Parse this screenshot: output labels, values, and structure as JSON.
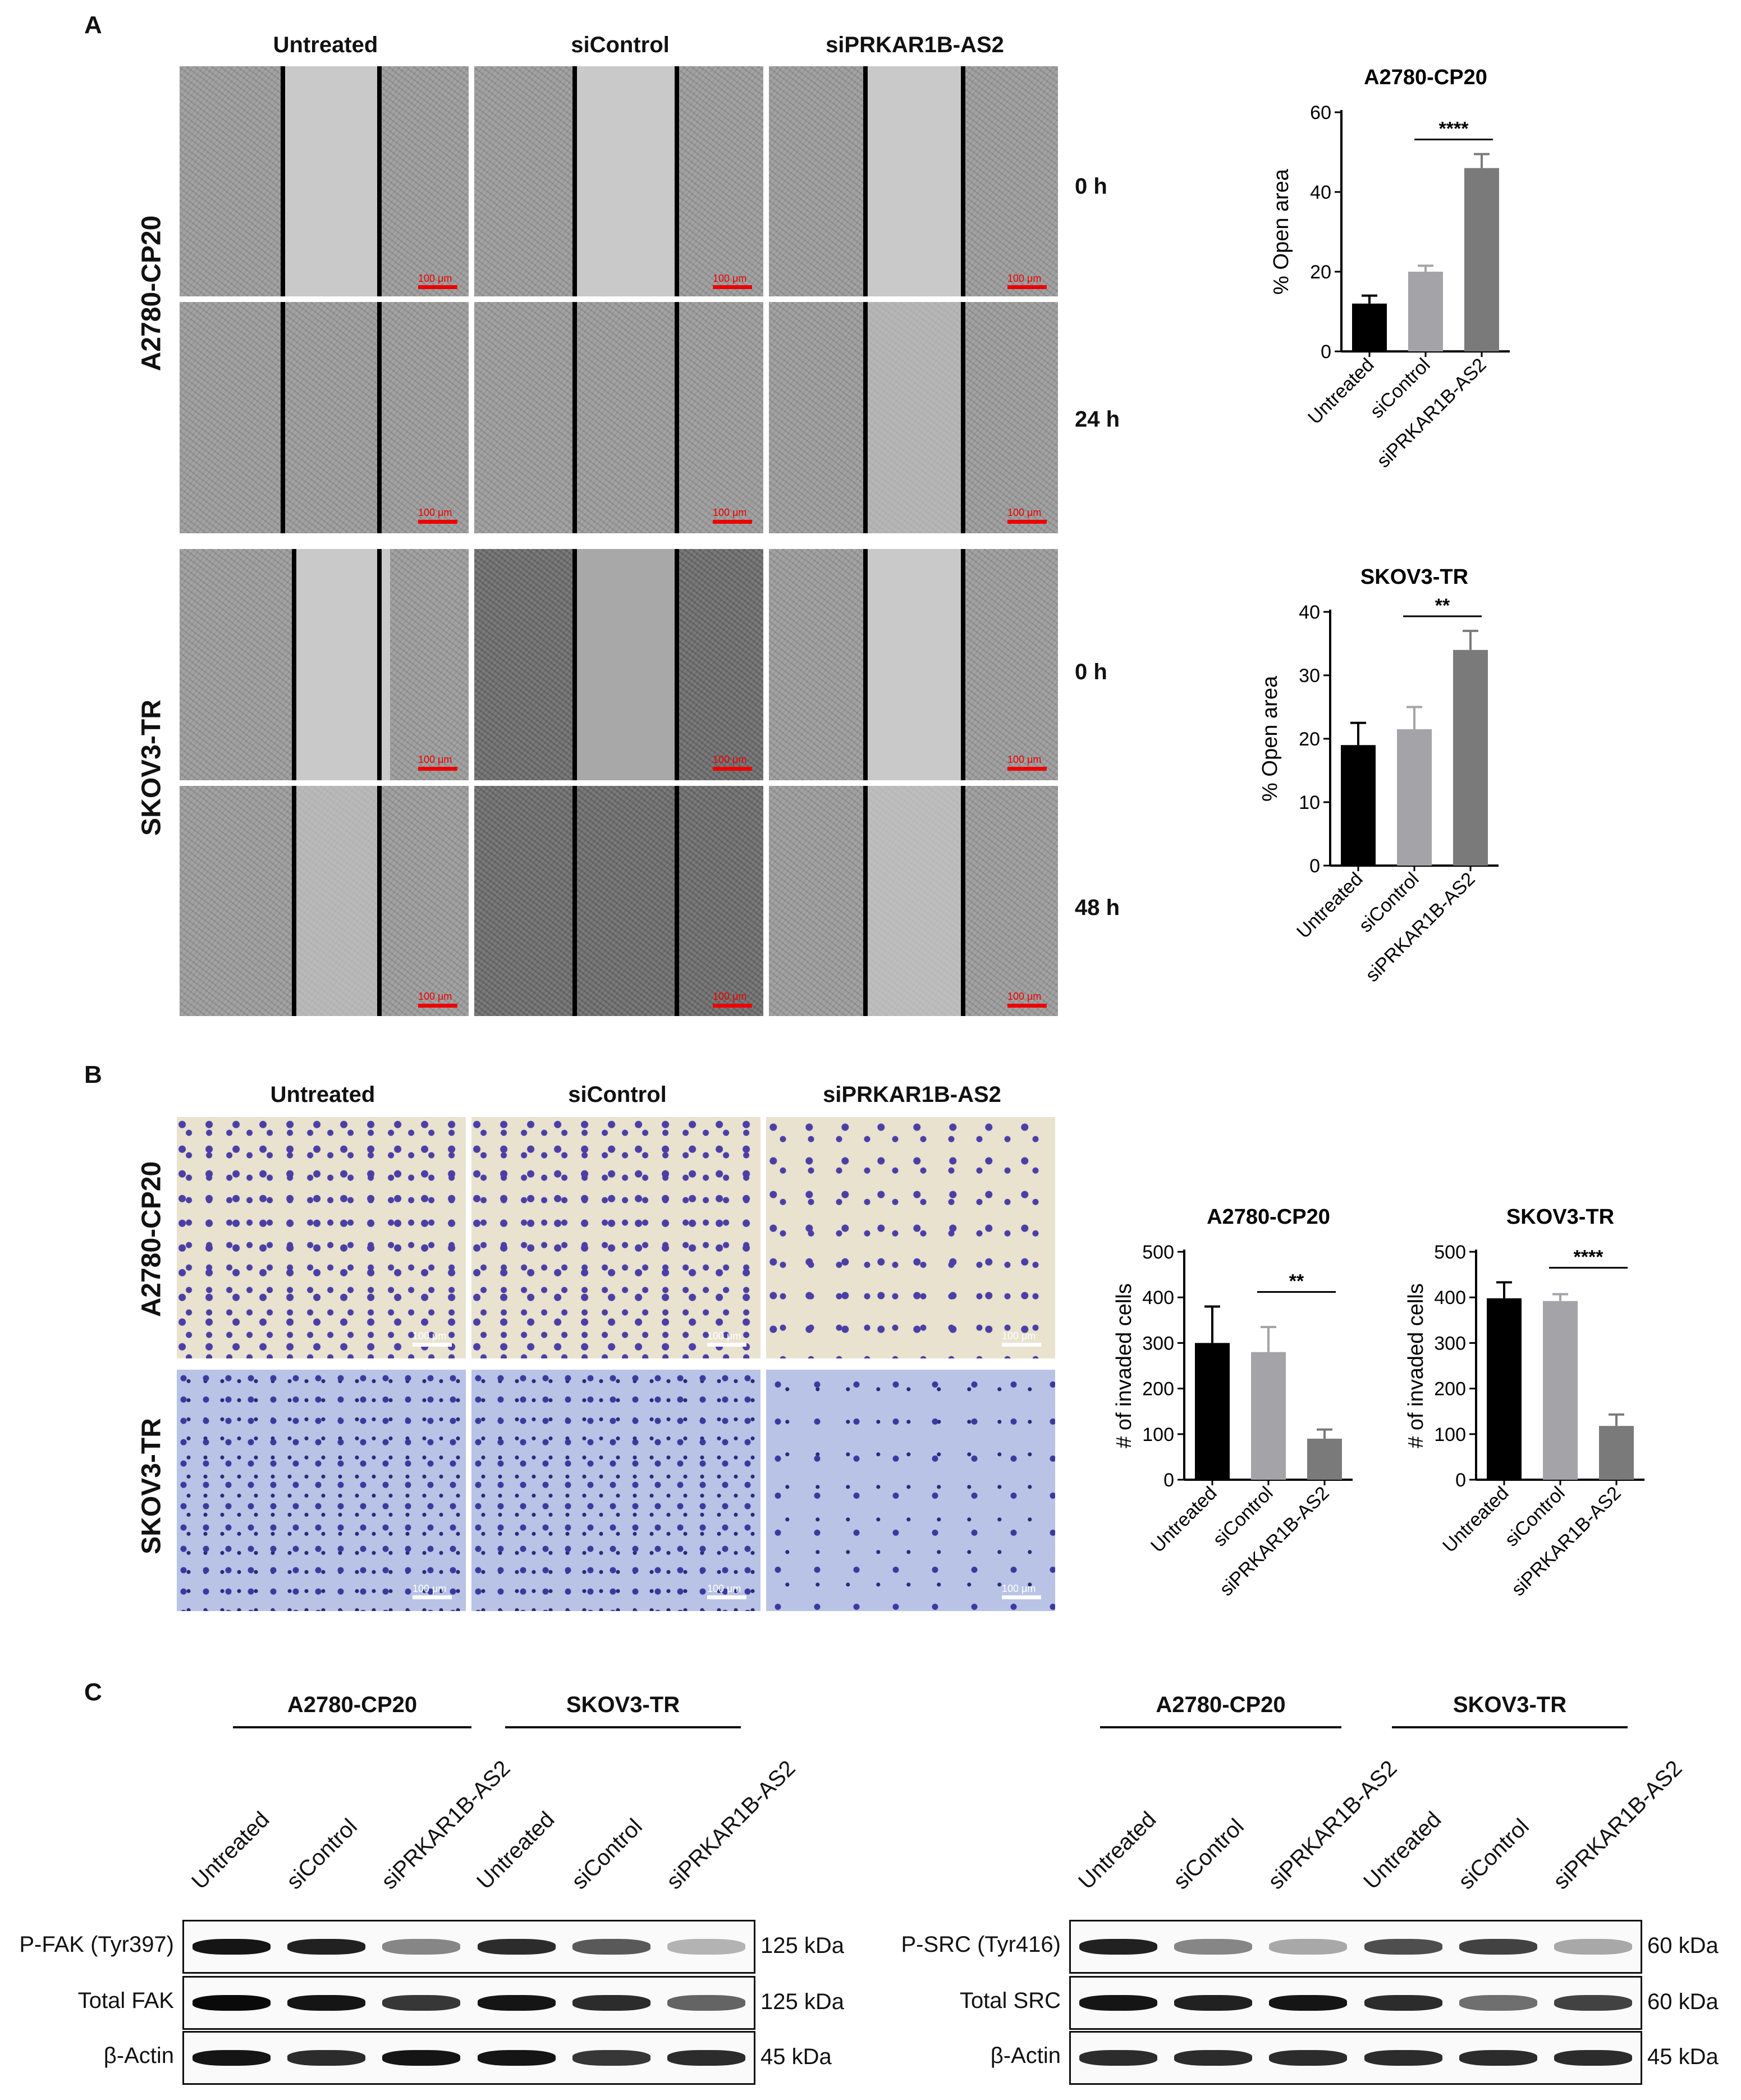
{
  "panels": {
    "a": "A",
    "b": "B",
    "c": "C"
  },
  "treatments": [
    "Untreated",
    "siControl",
    "siPRKAR1B-AS2"
  ],
  "cell_lines": [
    "A2780-CP20",
    "SKOV3-TR"
  ],
  "panel_a": {
    "times_a2780": [
      "0 h",
      "24 h"
    ],
    "times_skov3": [
      "0 h",
      "48 h"
    ],
    "scale": "100 μm"
  },
  "panel_b": {
    "scale": "100 μm"
  },
  "panel_c": {
    "left": {
      "groups": [
        "A2780-CP20",
        "SKOV3-TR"
      ],
      "lanes": [
        "Untreated",
        "siControl",
        "siPRKAR1B-AS2",
        "Untreated",
        "siControl",
        "siPRKAR1B-AS2"
      ],
      "rows": [
        {
          "label": "P-FAK (Tyr397)",
          "kda": "125 kDa",
          "intensity": [
            0.95,
            0.9,
            0.45,
            0.85,
            0.65,
            0.25
          ]
        },
        {
          "label": "Total FAK",
          "kda": "125 kDa",
          "intensity": [
            1.0,
            0.95,
            0.8,
            0.95,
            0.85,
            0.6
          ]
        },
        {
          "label": "β-Actin",
          "kda": "45 kDa",
          "intensity": [
            0.95,
            0.85,
            0.95,
            0.95,
            0.8,
            0.85
          ]
        }
      ]
    },
    "right": {
      "groups": [
        "A2780-CP20",
        "SKOV3-TR"
      ],
      "lanes": [
        "Untreated",
        "siControl",
        "siPRKAR1B-AS2",
        "Untreated",
        "siControl",
        "siPRKAR1B-AS2"
      ],
      "rows": [
        {
          "label": "P-SRC (Tyr416)",
          "kda": "60 kDa",
          "intensity": [
            0.9,
            0.45,
            0.3,
            0.7,
            0.75,
            0.3
          ]
        },
        {
          "label": "Total SRC",
          "kda": "60 kDa",
          "intensity": [
            0.95,
            0.9,
            0.95,
            0.85,
            0.55,
            0.75
          ]
        },
        {
          "label": "β-Actin",
          "kda": "45 kDa",
          "intensity": [
            0.85,
            0.85,
            0.85,
            0.85,
            0.85,
            0.85
          ]
        }
      ]
    }
  },
  "chart_data": [
    {
      "type": "bar",
      "title": "A2780-CP20",
      "ylabel": "% Open area",
      "categories": [
        "Untreated",
        "siControl",
        "siPRKAR1B-AS2"
      ],
      "values": [
        12,
        20,
        46
      ],
      "errors": [
        2,
        1.5,
        3.5
      ],
      "ylim": [
        0,
        60
      ],
      "yticks": [
        0,
        20,
        40,
        60
      ],
      "significance": {
        "from": 1,
        "to": 2,
        "label": "****"
      },
      "colors": [
        "#000000",
        "#a3a3a8",
        "#7a7a7a"
      ]
    },
    {
      "type": "bar",
      "title": "SKOV3-TR",
      "ylabel": "% Open area",
      "categories": [
        "Untreated",
        "siControl",
        "siPRKAR1B-AS2"
      ],
      "values": [
        19,
        21.5,
        34
      ],
      "errors": [
        3.5,
        3.5,
        3
      ],
      "ylim": [
        0,
        40
      ],
      "yticks": [
        0,
        10,
        20,
        30,
        40
      ],
      "significance": {
        "from": 1,
        "to": 2,
        "label": "**"
      },
      "colors": [
        "#000000",
        "#a3a3a8",
        "#7a7a7a"
      ]
    },
    {
      "type": "bar",
      "title": "A2780-CP20",
      "ylabel": "# of invaded cells",
      "categories": [
        "Untreated",
        "siControl",
        "siPRKAR1B-AS2"
      ],
      "values": [
        300,
        280,
        90
      ],
      "errors": [
        80,
        55,
        20
      ],
      "ylim": [
        0,
        500
      ],
      "yticks": [
        0,
        100,
        200,
        300,
        400,
        500
      ],
      "significance": {
        "from": 1,
        "to": 2,
        "label": "**"
      },
      "colors": [
        "#000000",
        "#a3a3a8",
        "#7a7a7a"
      ]
    },
    {
      "type": "bar",
      "title": "SKOV3-TR",
      "ylabel": "# of invaded cells",
      "categories": [
        "Untreated",
        "siControl",
        "siPRKAR1B-AS2"
      ],
      "values": [
        398,
        392,
        118
      ],
      "errors": [
        35,
        15,
        25
      ],
      "ylim": [
        0,
        500
      ],
      "yticks": [
        0,
        100,
        200,
        300,
        400,
        500
      ],
      "significance": {
        "from": 1,
        "to": 2,
        "label": "****"
      },
      "colors": [
        "#000000",
        "#a3a3a8",
        "#7a7a7a"
      ]
    }
  ]
}
